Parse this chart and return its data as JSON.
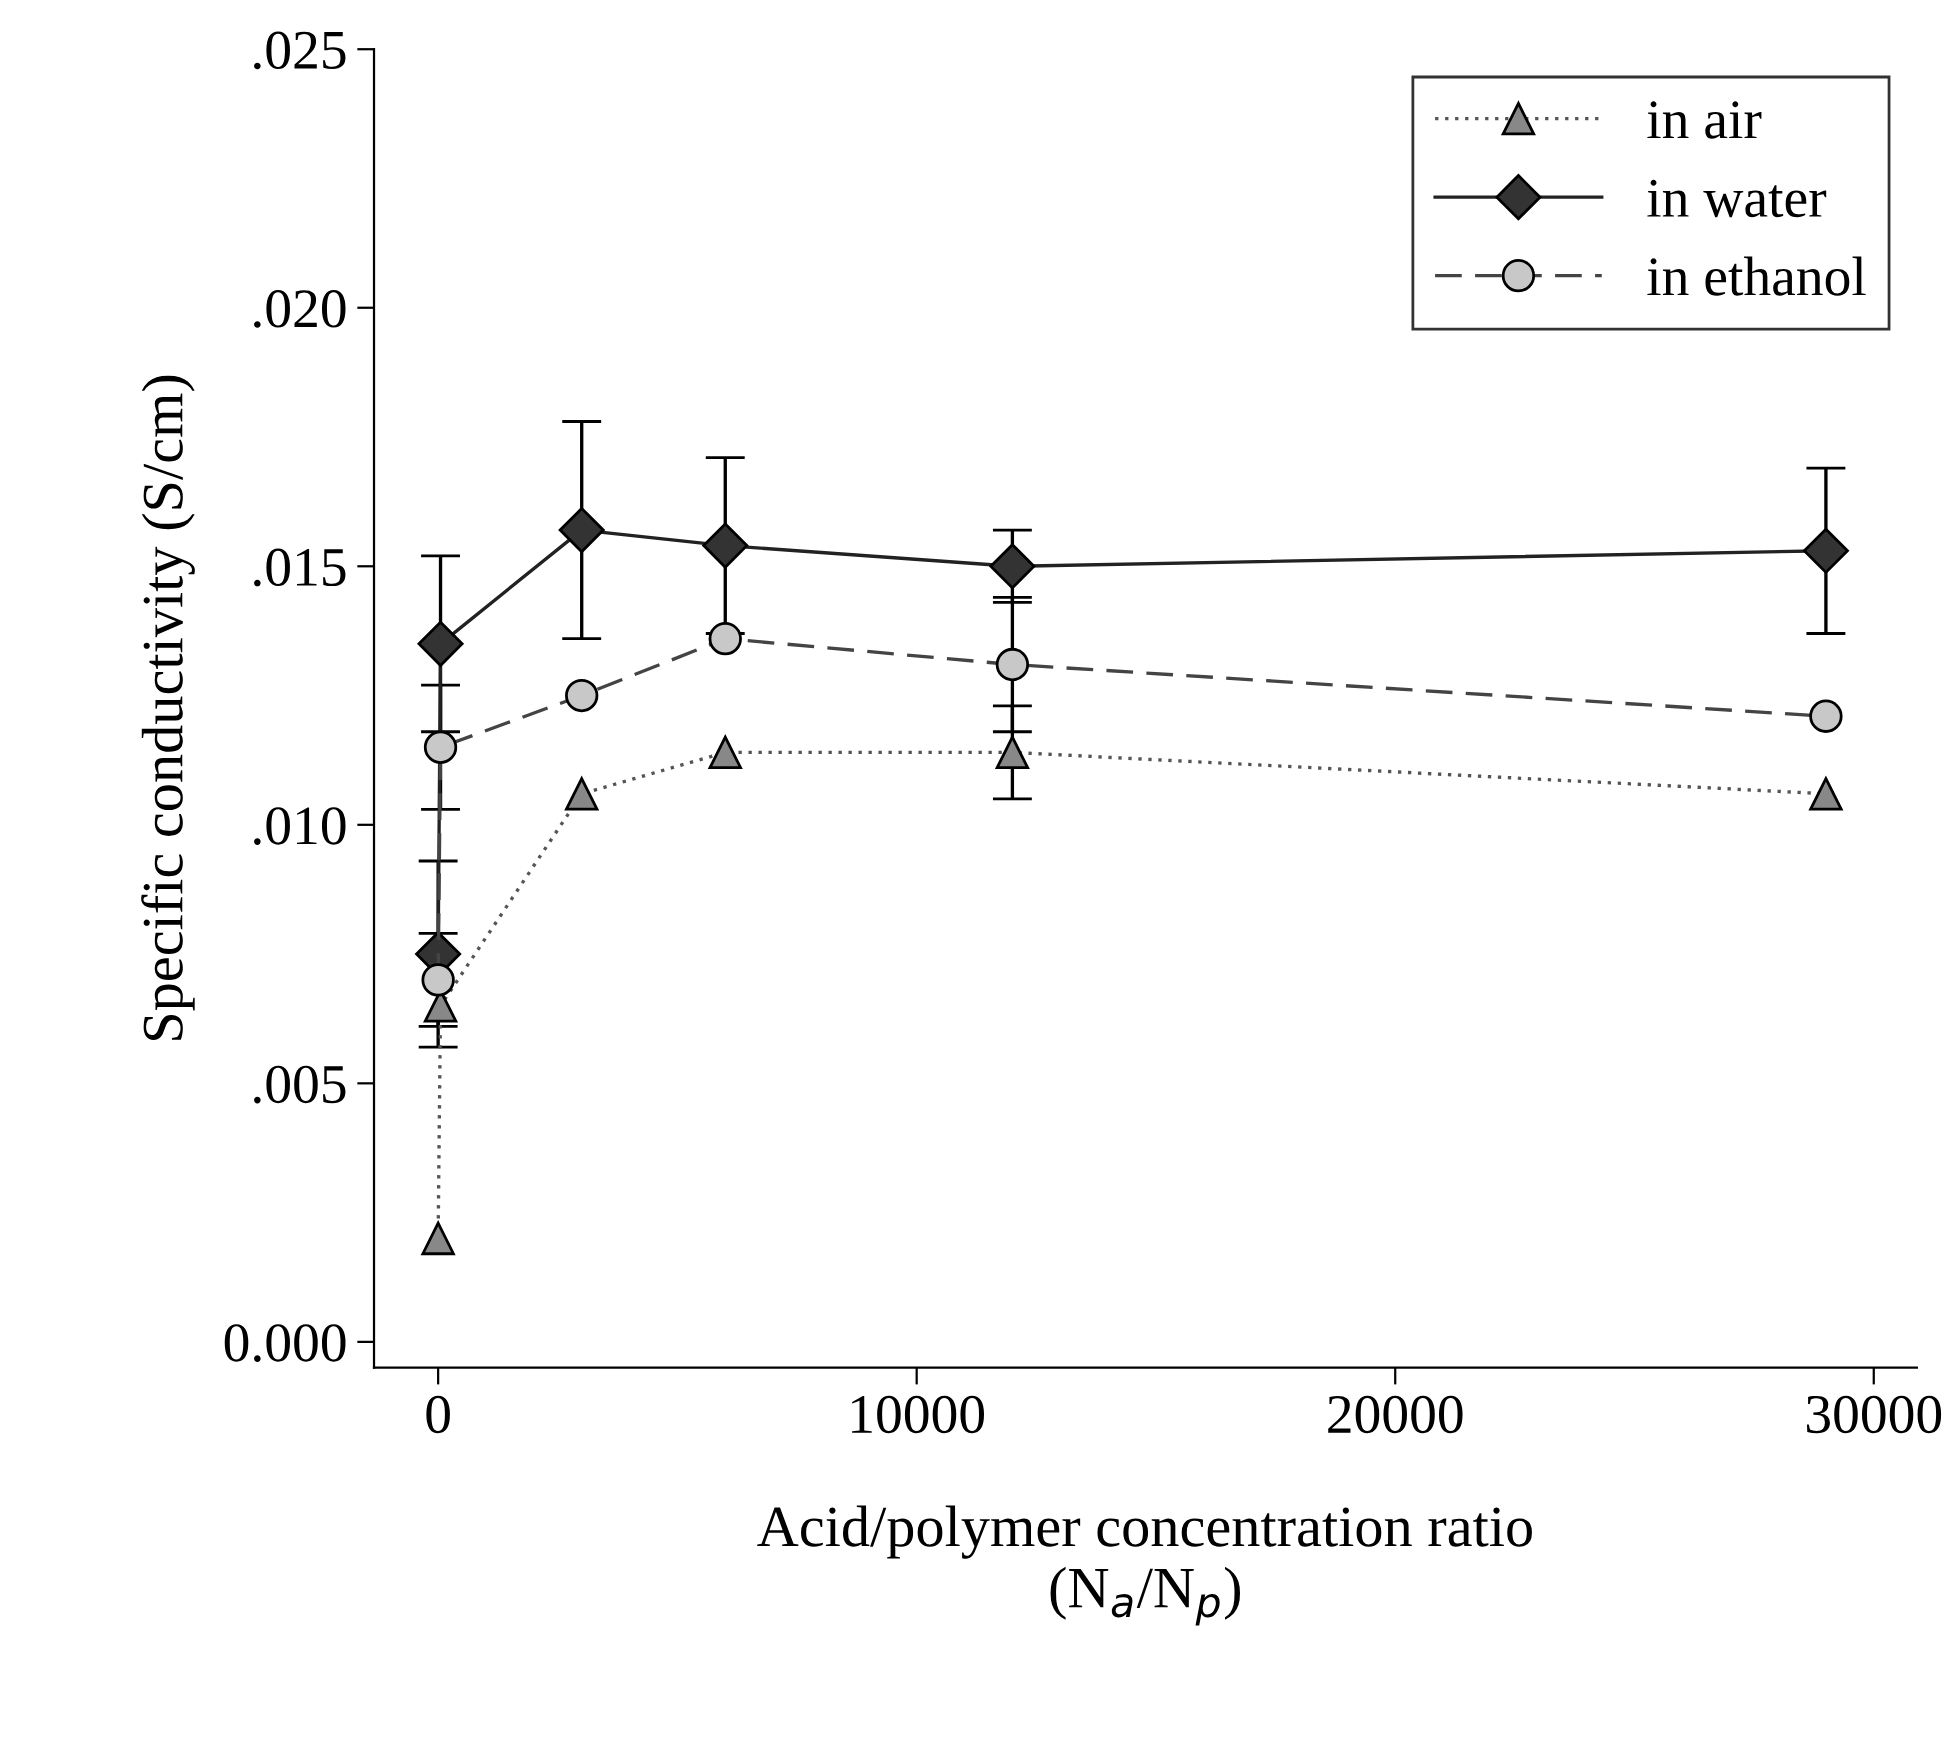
{
  "chart_data": {
    "type": "line",
    "xlabel": "Acid/polymer concentration ratio\n(N$_{a}$/N$_{p}$)",
    "ylabel": "Specific conductivity (S/cm)",
    "xlim": [
      -1340,
      30900
    ],
    "xticks": [
      0,
      10000,
      20000,
      30000
    ],
    "ylim": [
      -0.0005,
      0.025
    ],
    "yticks": [
      {
        "value": 0,
        "label": "0.000"
      },
      {
        "value": 0.005,
        "label": ".005"
      },
      {
        "value": 0.01,
        "label": ".010"
      },
      {
        "value": 0.015,
        "label": ".015"
      },
      {
        "value": 0.02,
        "label": ".020"
      },
      {
        "value": 0.025,
        "label": ".025"
      }
    ],
    "grid": false,
    "legend": "top right",
    "series": [
      {
        "name": "in air",
        "color": "#555555",
        "marker": "triangle",
        "line_style": "dotted",
        "x": [
          0,
          50,
          3000,
          6000,
          12000,
          29000
        ],
        "values": [
          0.002,
          0.0065,
          0.0106,
          0.0114,
          0.0114,
          0.0106
        ],
        "errors": [
          null,
          null,
          null,
          null,
          0.0009,
          null
        ]
      },
      {
        "name": "in water",
        "color": "#222222",
        "marker": "diamond",
        "line_style": "solid",
        "x": [
          0,
          50,
          3000,
          6000,
          12000,
          29000
        ],
        "values": [
          0.0075,
          0.0135,
          0.0157,
          0.0154,
          0.015,
          0.0153
        ],
        "errors": [
          0.0018,
          0.0017,
          0.0021,
          0.0017,
          0.0007,
          0.0016
        ]
      },
      {
        "name": "in ethanol",
        "color": "#444444",
        "marker": "circle",
        "line_style": "dashed",
        "x": [
          0,
          50,
          3000,
          6000,
          12000,
          29000
        ],
        "values": [
          0.007,
          0.0115,
          0.0125,
          0.0136,
          0.0131,
          0.0121
        ],
        "errors": [
          0.0009,
          0.0012,
          null,
          null,
          0.0013,
          null
        ]
      }
    ]
  }
}
